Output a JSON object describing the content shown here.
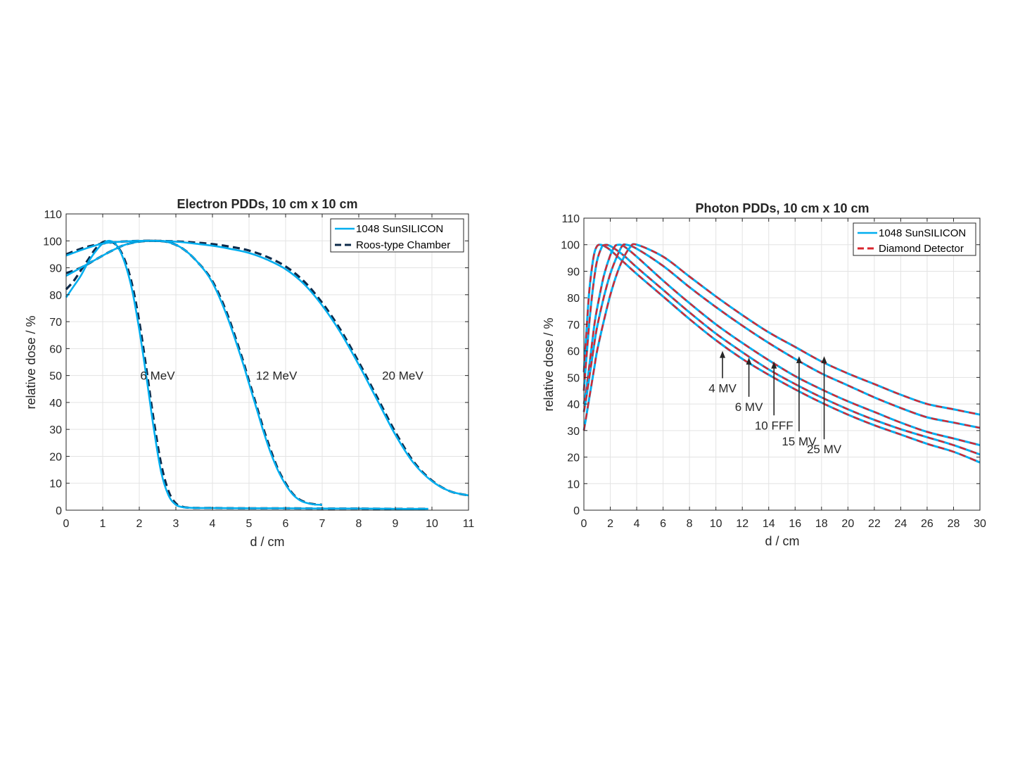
{
  "colors": {
    "cyan": "#00aeef",
    "navy": "#0d2a4a",
    "red": "#d9262e",
    "grid": "#e3e3e3",
    "axis": "#262626"
  },
  "chart_data": [
    {
      "type": "line",
      "title": "Electron PDDs, 10 cm x 10 cm",
      "xlabel": "d / cm",
      "ylabel": "relative dose / %",
      "xlim": [
        0,
        11
      ],
      "ylim": [
        0,
        110
      ],
      "xticks": [
        "0",
        "1",
        "2",
        "3",
        "4",
        "5",
        "6",
        "7",
        "8",
        "9",
        "10",
        "11"
      ],
      "yticks": [
        "0",
        "10",
        "20",
        "30",
        "40",
        "50",
        "60",
        "70",
        "80",
        "90",
        "100",
        "110"
      ],
      "grid": true,
      "legend": {
        "position": "top-right",
        "entries": [
          {
            "label": "1048 SunSILICON",
            "color": "#00aeef",
            "style": "solid"
          },
          {
            "label": "Roos-type Chamber",
            "color": "#0d2a4a",
            "style": "dashed"
          }
        ]
      },
      "annotations": [
        {
          "text": "6 MeV",
          "x": 2.5,
          "y": 50
        },
        {
          "text": "12 MeV",
          "x": 5.75,
          "y": 50
        },
        {
          "text": "20 MeV",
          "x": 9.2,
          "y": 50
        }
      ],
      "series": [
        {
          "detector": "Roos-type Chamber",
          "energy": "6 MeV",
          "style": "dashed",
          "color": "#0d2a4a",
          "x": [
            0,
            0.2,
            0.4,
            0.6,
            0.8,
            1.0,
            1.2,
            1.4,
            1.6,
            1.8,
            2.0,
            2.2,
            2.4,
            2.6,
            2.8,
            3.0,
            3.2,
            3.4,
            3.6,
            4,
            5,
            6,
            7,
            8,
            9,
            9.9
          ],
          "y": [
            82,
            85,
            89,
            93,
            97,
            99.5,
            99.8,
            98,
            93,
            84,
            70,
            52,
            33,
            17,
            7,
            2.5,
            1.2,
            0.9,
            0.8,
            0.8,
            0.7,
            0.7,
            0.6,
            0.6,
            0.5,
            0.5
          ]
        },
        {
          "detector": "1048 SunSILICON",
          "energy": "6 MeV",
          "style": "solid",
          "color": "#00aeef",
          "x": [
            0,
            0.2,
            0.4,
            0.6,
            0.8,
            1.0,
            1.2,
            1.4,
            1.6,
            1.8,
            2.0,
            2.2,
            2.4,
            2.6,
            2.8,
            3.0,
            3.2,
            3.4,
            3.6,
            4,
            5,
            6,
            7,
            8,
            9,
            9.9
          ],
          "y": [
            79,
            83,
            87,
            92,
            96,
            99,
            100,
            98,
            92,
            82,
            67,
            49,
            30,
            14,
            5.5,
            2,
            1.1,
            0.9,
            0.8,
            0.8,
            0.7,
            0.7,
            0.6,
            0.6,
            0.5,
            0.5
          ]
        },
        {
          "detector": "Roos-type Chamber",
          "energy": "12 MeV",
          "style": "dashed",
          "color": "#0d2a4a",
          "x": [
            0,
            0.4,
            0.8,
            1.2,
            1.6,
            2.0,
            2.4,
            2.8,
            3.2,
            3.6,
            4.0,
            4.4,
            4.8,
            5.0,
            5.2,
            5.4,
            5.6,
            5.8,
            6.0,
            6.2,
            6.4,
            6.6,
            6.8,
            7.0
          ],
          "y": [
            88,
            90,
            93,
            96,
            98.5,
            99.7,
            100,
            99.5,
            97,
            92,
            85,
            73,
            57,
            48,
            39,
            30,
            22,
            15,
            10,
            6,
            3.8,
            2.7,
            2.2,
            2.0
          ]
        },
        {
          "detector": "1048 SunSILICON",
          "energy": "12 MeV",
          "style": "solid",
          "color": "#00aeef",
          "x": [
            0,
            0.4,
            0.8,
            1.2,
            1.6,
            2.0,
            2.4,
            2.8,
            3.2,
            3.6,
            4.0,
            4.4,
            4.8,
            5.0,
            5.2,
            5.4,
            5.6,
            5.8,
            6.0,
            6.2,
            6.4,
            6.6,
            6.8,
            7.0
          ],
          "y": [
            87,
            90,
            93,
            96,
            98.5,
            99.7,
            100,
            99.5,
            97,
            92,
            84.5,
            72,
            56,
            47,
            38,
            29,
            21,
            14.5,
            9.5,
            5.8,
            3.6,
            2.6,
            2.1,
            2.0
          ]
        },
        {
          "detector": "Roos-type Chamber",
          "energy": "20 MeV",
          "style": "dashed",
          "color": "#0d2a4a",
          "x": [
            0,
            0.5,
            1,
            1.5,
            2,
            2.5,
            3,
            3.5,
            4,
            4.5,
            5,
            5.5,
            6,
            6.5,
            7,
            7.5,
            8,
            8.5,
            9,
            9.5,
            10,
            10.5,
            11
          ],
          "y": [
            95,
            97.5,
            99,
            99.7,
            100,
            100,
            99.8,
            99.4,
            98.8,
            97.8,
            96.4,
            94,
            90.5,
            85,
            77,
            67,
            55,
            42,
            29,
            18,
            11,
            7,
            5.5
          ]
        },
        {
          "detector": "1048 SunSILICON",
          "energy": "20 MeV",
          "style": "solid",
          "color": "#00aeef",
          "x": [
            0,
            0.5,
            1,
            1.5,
            2,
            2.5,
            3,
            3.5,
            4,
            4.5,
            5,
            5.5,
            6,
            6.5,
            7,
            7.5,
            8,
            8.5,
            9,
            9.5,
            10,
            10.5,
            11
          ],
          "y": [
            94.5,
            97,
            99,
            99.7,
            100,
            100,
            99.7,
            99,
            98.2,
            97,
            95.5,
            93,
            89.5,
            84,
            76,
            66,
            54,
            41,
            28,
            17.5,
            10.8,
            7,
            5.5
          ]
        }
      ]
    },
    {
      "type": "line",
      "title": "Photon PDDs, 10 cm x 10 cm",
      "xlabel": "d / cm",
      "ylabel": "relative dose / %",
      "xlim": [
        0,
        30
      ],
      "ylim": [
        0,
        110
      ],
      "xticks": [
        "0",
        "2",
        "4",
        "6",
        "8",
        "10",
        "12",
        "14",
        "16",
        "18",
        "20",
        "22",
        "24",
        "26",
        "28",
        "30"
      ],
      "yticks": [
        "0",
        "10",
        "20",
        "30",
        "40",
        "50",
        "60",
        "70",
        "80",
        "90",
        "100",
        "110"
      ],
      "grid": true,
      "legend": {
        "position": "top-right",
        "entries": [
          {
            "label": "1048 SunSILICON",
            "color": "#00aeef",
            "style": "solid"
          },
          {
            "label": "Diamond Detector",
            "color": "#d9262e",
            "style": "dashed"
          }
        ]
      },
      "annotations": [
        {
          "text": "4 MV",
          "x": 10.5,
          "y": 46,
          "arrow_to": [
            10.5,
            60
          ]
        },
        {
          "text": "6 MV",
          "x": 12.5,
          "y": 39,
          "arrow_to": [
            12.5,
            57.5
          ]
        },
        {
          "text": "10 FFF",
          "x": 14.4,
          "y": 32,
          "arrow_to": [
            14.4,
            56
          ]
        },
        {
          "text": "15 MV",
          "x": 16.3,
          "y": 26,
          "arrow_to": [
            16.3,
            58
          ]
        },
        {
          "text": "25 MV",
          "x": 18.2,
          "y": 23,
          "arrow_to": [
            18.2,
            58
          ]
        }
      ],
      "series": [
        {
          "energy": "4 MV",
          "x": [
            0,
            0.2,
            0.4,
            0.6,
            0.8,
            1.0,
            1.2,
            1.5,
            2,
            3,
            4,
            6,
            8,
            10,
            12,
            14,
            16,
            18,
            20,
            22,
            24,
            26,
            28,
            30
          ],
          "y": [
            52,
            68,
            82,
            91,
            97,
            99.5,
            100,
            99.6,
            98,
            93.5,
            89,
            80.5,
            72,
            64,
            57,
            51,
            45.5,
            40.5,
            36,
            32,
            28.5,
            25,
            22,
            18
          ]
        },
        {
          "energy": "6 MV",
          "x": [
            0,
            0.2,
            0.4,
            0.6,
            0.8,
            1.0,
            1.3,
            1.5,
            2,
            3,
            4,
            6,
            8,
            10,
            12,
            14,
            16,
            18,
            20,
            22,
            24,
            26,
            28,
            30
          ],
          "y": [
            45,
            58,
            70,
            80,
            88,
            94,
            98.5,
            99.8,
            99.5,
            96,
            91.5,
            83,
            74.5,
            66.5,
            59.5,
            53,
            47.5,
            42.5,
            38,
            34,
            30.5,
            27.5,
            24.5,
            21
          ]
        },
        {
          "energy": "10 FFF",
          "x": [
            0,
            0.2,
            0.5,
            0.8,
            1.0,
            1.5,
            2,
            2.3,
            2.5,
            3,
            4,
            6,
            8,
            10,
            12,
            14,
            16,
            18,
            20,
            22,
            24,
            26,
            28,
            30
          ],
          "y": [
            40,
            46,
            58,
            70,
            76,
            88,
            96,
            99,
            99.9,
            99.5,
            95.5,
            86.5,
            78,
            70,
            63,
            56.5,
            50.5,
            45.5,
            41,
            37,
            33,
            29.5,
            27,
            24.5
          ]
        },
        {
          "energy": "15 MV",
          "x": [
            0,
            0.2,
            0.5,
            0.8,
            1.0,
            1.5,
            2,
            2.5,
            2.9,
            3.2,
            4,
            6,
            8,
            10,
            12,
            14,
            16,
            18,
            20,
            22,
            24,
            26,
            28,
            30
          ],
          "y": [
            37,
            43,
            53,
            63,
            69,
            80,
            89,
            95.5,
            99.5,
            100,
            98.5,
            92,
            84,
            76.5,
            69.5,
            63,
            57,
            51.5,
            47,
            42.5,
            38.5,
            35,
            33,
            31
          ]
        },
        {
          "energy": "25 MV",
          "x": [
            0,
            0.2,
            0.5,
            0.8,
            1.0,
            1.5,
            2,
            2.5,
            3,
            3.5,
            4,
            6,
            8,
            10,
            12,
            14,
            16,
            18,
            20,
            22,
            24,
            26,
            28,
            30
          ],
          "y": [
            30,
            36,
            45,
            54,
            60,
            71,
            81,
            89,
            95,
            99,
            100,
            95.5,
            88,
            80.5,
            73.5,
            67,
            61.5,
            56,
            51.5,
            47.5,
            43.5,
            40,
            38,
            36
          ]
        }
      ]
    }
  ]
}
